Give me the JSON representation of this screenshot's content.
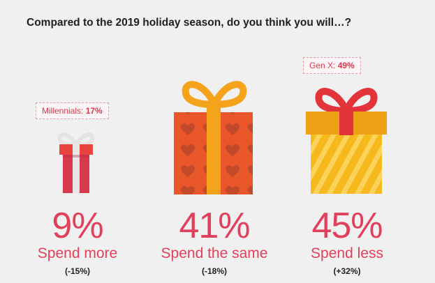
{
  "chart_data": {
    "type": "pictogram",
    "title": "Compared to the 2019 holiday season, do you think you will…?",
    "categories": [
      "Spend more",
      "Spend the same",
      "Spend less"
    ],
    "values": [
      9,
      41,
      45
    ],
    "value_labels": [
      "9%",
      "41%",
      "45%"
    ],
    "changes": [
      "(-15%)",
      "(-18%)",
      "(+32%)"
    ],
    "callouts": [
      {
        "category_index": 0,
        "group": "Millennials:",
        "value_label": "17%",
        "value": 17
      },
      {
        "category_index": 2,
        "group": "Gen X:",
        "value_label": "49%",
        "value": 49
      }
    ],
    "colors": {
      "text_accent": "#e0405b",
      "gift_small_box": "#d8394f",
      "gift_small_ribbon": "#e8e6e6",
      "gift_mid_box": "#e8562a",
      "gift_mid_ribbon": "#f4a31b",
      "gift_mid_heart": "#c24a2a",
      "gift_large_box": "#f6b91b",
      "gift_large_stripe": "#fbd35a",
      "gift_large_lid": "#f0a015",
      "gift_large_ribbon": "#e3343a"
    }
  }
}
